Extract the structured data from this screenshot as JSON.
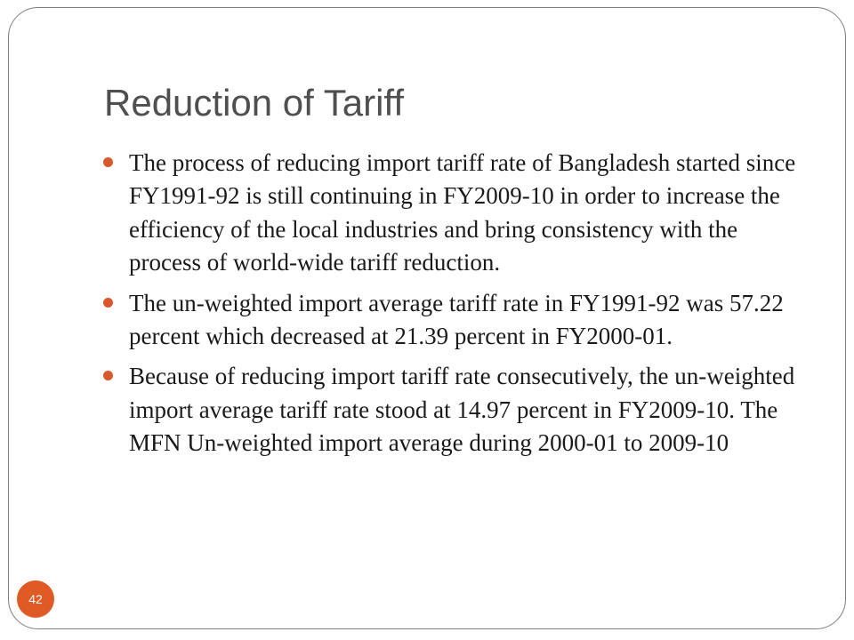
{
  "slide": {
    "title": "Reduction of Tariff",
    "page_number": "42",
    "bullets": [
      {
        "text": "The process of reducing import tariff rate of Bangladesh started since FY1991-92 is still continuing in FY2009-10 in order to increase the efficiency of the local industries and bring consistency with the process of world-wide tariff reduction."
      },
      {
        "text": "The un-weighted import average tariff rate in FY1991-92 was 57.22 percent which decreased at 21.39 percent in FY2000-01."
      },
      {
        "text": "Because of reducing import tariff rate consecutively, the un-weighted import average tariff rate stood at 14.97 percent in FY2009-10. The MFN Un-weighted import average during 2000-01 to 2009-10"
      }
    ]
  },
  "colors": {
    "accent": "#df5a25",
    "title": "#4f4f4f",
    "body_text": "#1a1a1a",
    "frame_border": "#7f7f7f"
  }
}
